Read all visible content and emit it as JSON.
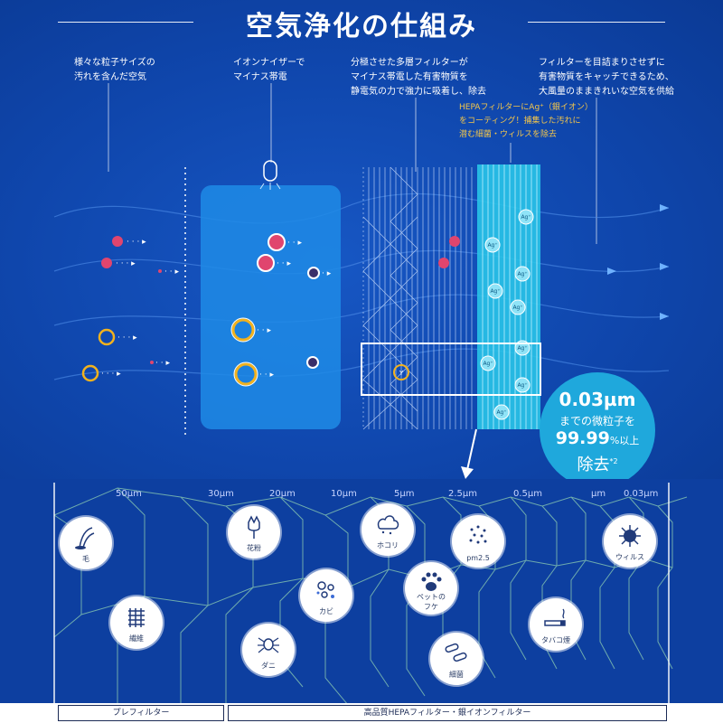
{
  "title": "空気浄化の仕組み",
  "descriptions": {
    "step1": "様々な粒子サイズの\n汚れを含んだ空気",
    "step2": "イオンナイザーで\nマイナス帯電",
    "step3": "分極させた多層フィルターが\nマイナス帯電した有害物質を\n静電気の力で強力に吸着し、除去",
    "step4": "フィルターを目詰まりさせずに\n有害物質をキャッチできるため、\n大風量のままきれいな空気を供給",
    "hepa": "HEPAフィルターにAg⁺（銀イオン）\nをコーティング！捕集した汚れに\n潜む細菌・ウィルスを除去"
  },
  "badge": {
    "size": "0.03µm",
    "line1": "までの微粒子を",
    "percent": "99.99",
    "percent_suffix": "%以上",
    "line3": "除去",
    "footnote": "*2"
  },
  "particle_sizes": [
    "50µm",
    "30µm",
    "20µm",
    "10µm",
    "5µm",
    "2.5µm",
    "0.5µm",
    "µm",
    "0.03µm"
  ],
  "pollutants": [
    {
      "label": "毛",
      "icon": "hair-icon"
    },
    {
      "label": "花粉",
      "icon": "pollen-flower-icon"
    },
    {
      "label": "ホコリ",
      "icon": "dust-icon"
    },
    {
      "label": "pm2.5",
      "icon": "pm25-dots-icon"
    },
    {
      "label": "ウィルス",
      "icon": "virus-icon"
    },
    {
      "label": "繊維",
      "icon": "fiber-mesh-icon"
    },
    {
      "label": "カビ",
      "icon": "mold-icon"
    },
    {
      "label": "ペットの\nフケ",
      "icon": "pet-paw-icon"
    },
    {
      "label": "タバコ煙",
      "icon": "cigarette-icon"
    },
    {
      "label": "ダニ",
      "icon": "mite-icon"
    },
    {
      "label": "細菌",
      "icon": "bacteria-icon"
    }
  ],
  "filters": {
    "pre": "プレフィルター",
    "hepa": "高品質HEPAフィルター・銀イオンフィルター"
  },
  "ion_label": "Ag⁺",
  "captured_label": "Y",
  "colors": {
    "background": "#0f46ac",
    "bottom": "#0d3fa0",
    "badge": "#1fa8dc",
    "red_particle": "#e0456e",
    "yellow_particle": "#f2b21e",
    "hepa_cyan": "#29c4e8",
    "grid_green": "#8fd0b2"
  }
}
